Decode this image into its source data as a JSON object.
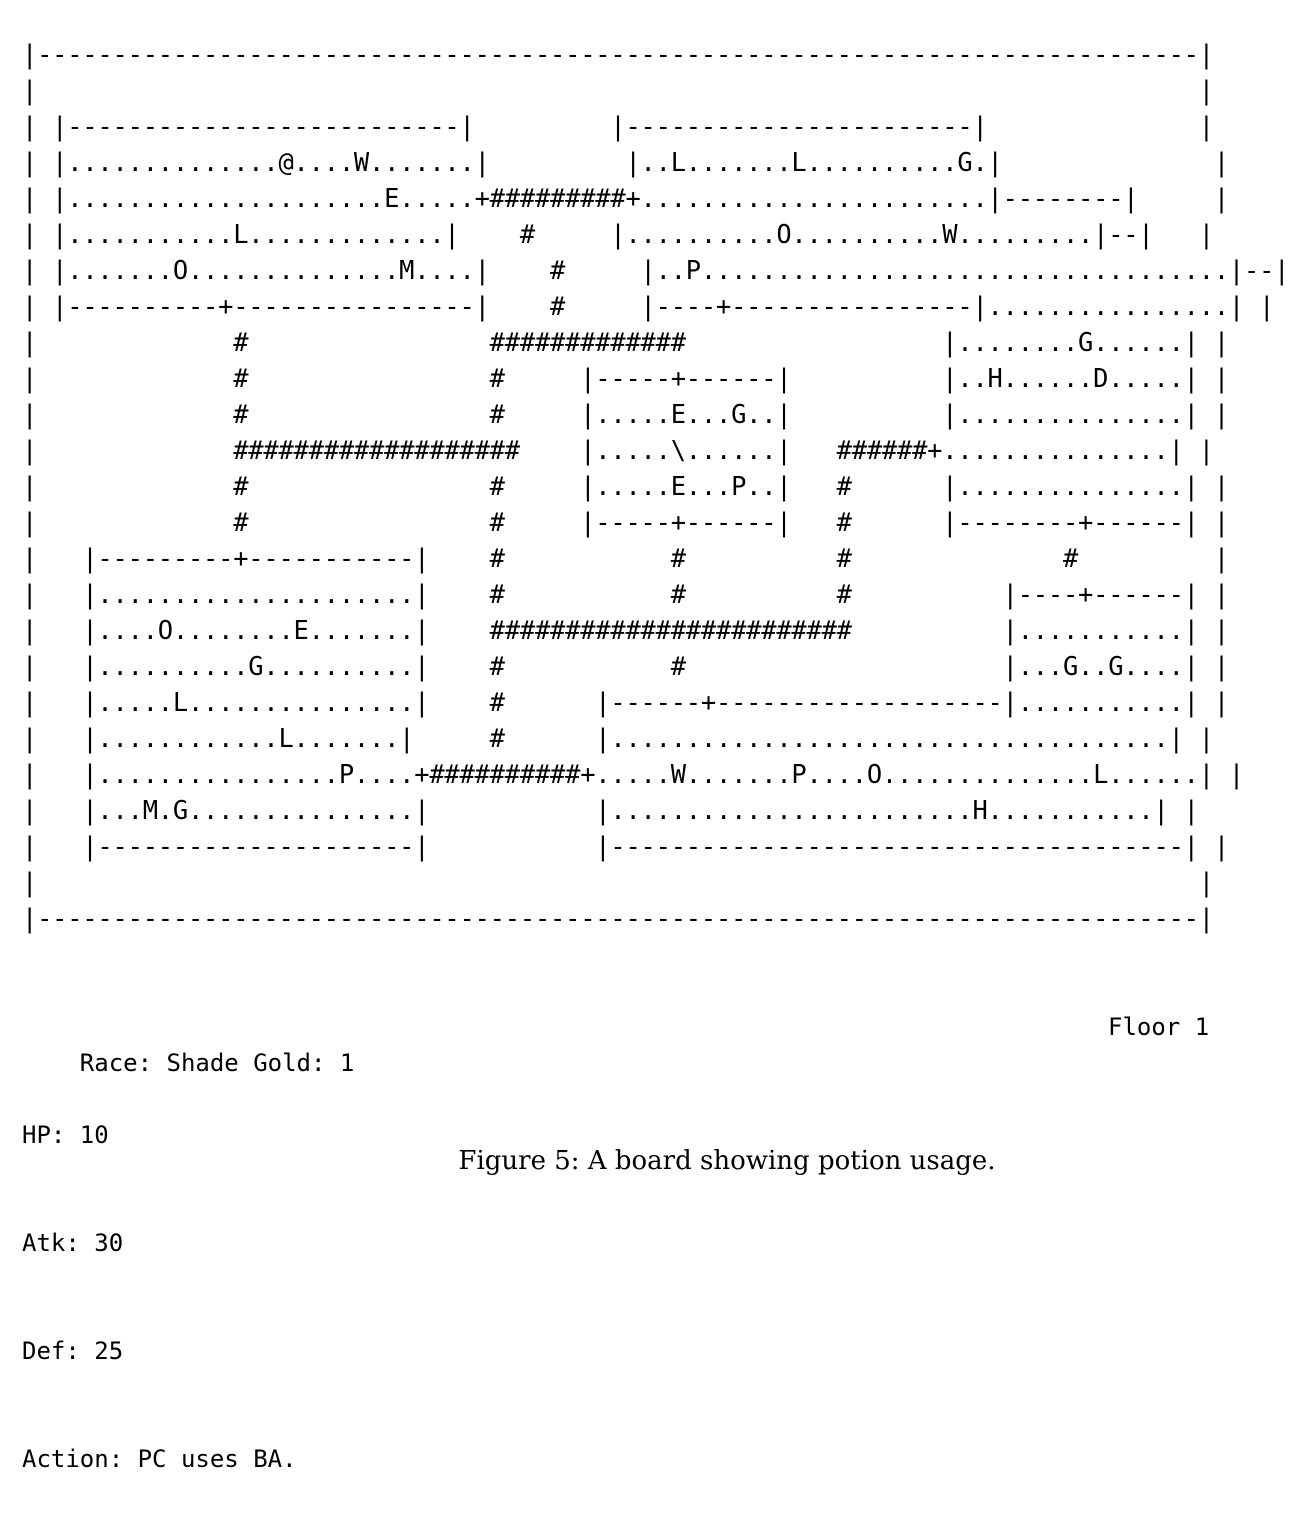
{
  "board": {
    "rows": [
      "|-----------------------------------------------------------------------------|",
      "|                                                                             |",
      "| |--------------------------|         |-----------------------|              |",
      "| |..............@....W.......|         |..L.......L..........G.|              |",
      "| |.....................E.....+#########+.......................|--------|     |",
      "| |...........L.............|    #     |..........O..........W.........|--|   |",
      "| |.......O..............M....|    #     |..P...................................|--| |",
      "| |----------+----------------|    #     |----+----------------|................| |",
      "|             #                #############                 |........G......| |",
      "|             #                #     |-----+------|          |..H......D.....| |",
      "|             #                #     |.....E...G..|          |...............| |",
      "|             ###################    |.....\\......|   ######+...............| |",
      "|             #                #     |.....E...P..|   #      |...............| |",
      "|             #                #     |-----+------|   #      |--------+------| |",
      "|   |---------+-----------|    #           #          #              #         |",
      "|   |.....................|    #           #          #          |----+------| |",
      "|   |....O........E.......|    ########################          |...........| |",
      "|   |..........G..........|    #           #                     |...G..G....| |",
      "|   |.....L...............|    #      |------+-------------------|...........| |",
      "|   |............L.......|     #      |.....................................| |",
      "|   |................P....+##########+.....W.......P....O..............L......| |",
      "|   |...M.G...............|           |........................H...........| |",
      "|   |---------------------|           |--------------------------------------| |",
      "|                                                                             |",
      "|-----------------------------------------------------------------------------|"
    ]
  },
  "status": {
    "race_line": "Race: Shade Gold: 1",
    "floor": "Floor 1",
    "hp": "HP: 10",
    "atk": "Atk: 30",
    "def": "Def: 25",
    "action": "Action: PC uses BA."
  },
  "caption": "Figure 5: A board showing potion usage."
}
